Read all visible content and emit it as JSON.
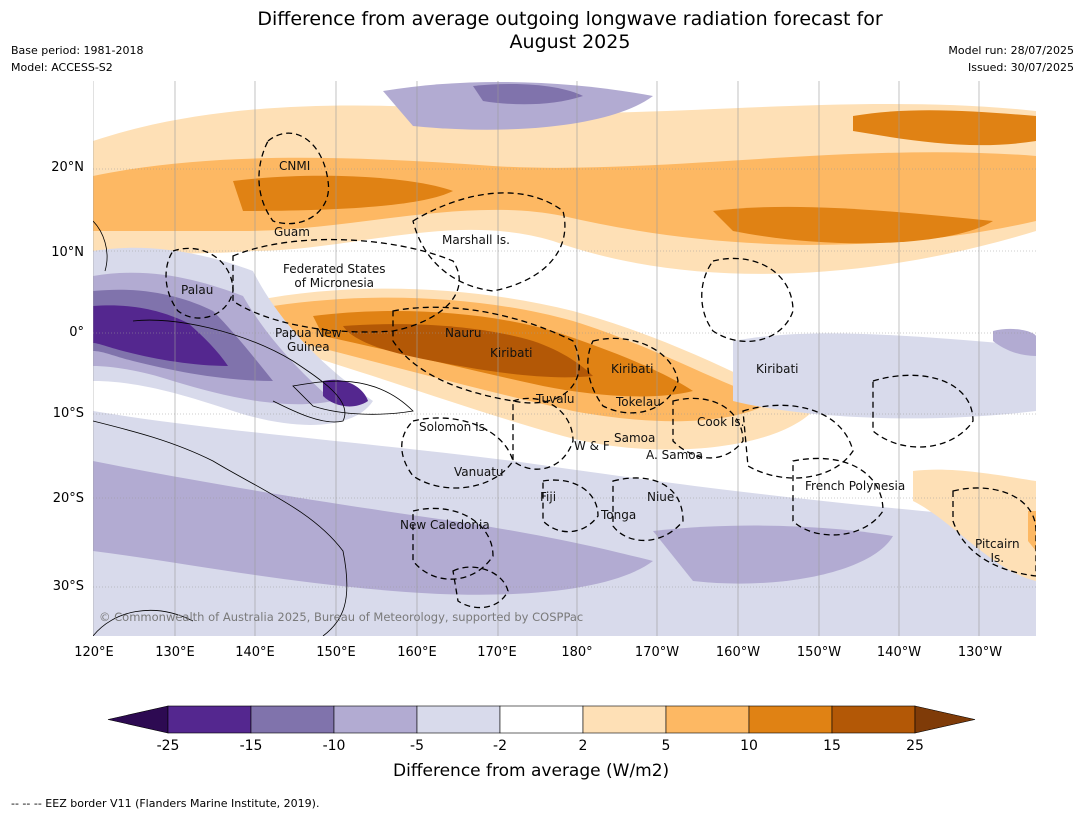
{
  "title": "Difference from average outgoing longwave radiation forecast for\nAugust 2025",
  "meta_left": [
    "Base period: 1981-2018",
    "Model: ACCESS-S2"
  ],
  "meta_right": [
    "Model run: 28/07/2025",
    "Issued: 30/07/2025"
  ],
  "lat_ticks": [
    "20°N",
    "10°N",
    "0°",
    "10°S",
    "20°S",
    "30°S"
  ],
  "lon_ticks": [
    "120°E",
    "130°E",
    "140°E",
    "150°E",
    "160°E",
    "170°E",
    "180°",
    "170°W",
    "160°W",
    "150°W",
    "140°W",
    "130°W"
  ],
  "places": [
    "CNMI",
    "Guam",
    "Marshall Is.",
    "Federated States\nof Micronesia",
    "Palau",
    "Papua New\nGuinea",
    "Nauru",
    "Kiribati",
    "Kiribati",
    "Kiribati",
    "Tuvalu",
    "Tokelau",
    "Solomon Is.",
    "Samoa",
    "Cook Is.",
    "W & F",
    "A. Samoa",
    "Vanuatu",
    "Fiji",
    "Niue",
    "French Polynesia",
    "Tonga",
    "New Caledonia",
    "Pitcairn\nIs."
  ],
  "copyright": "© Commonwealth of Australia 2025, Bureau of Meteorology, supported by COSPPac",
  "colorbar": {
    "labels": [
      "-25",
      "-15",
      "-10",
      "-5",
      "-2",
      "2",
      "5",
      "10",
      "15",
      "25"
    ],
    "colors": [
      "#2d0a52",
      "#54278f",
      "#8073ac",
      "#b2abd2",
      "#d8daeb",
      "#ffffff",
      "#fee0b6",
      "#fdb863",
      "#e08214",
      "#b35806",
      "#7f3b08"
    ],
    "title": "Difference from average (W/m2)"
  },
  "footer": "--  --  -- EEZ border V11 (Flanders Marine Institute, 2019)."
}
